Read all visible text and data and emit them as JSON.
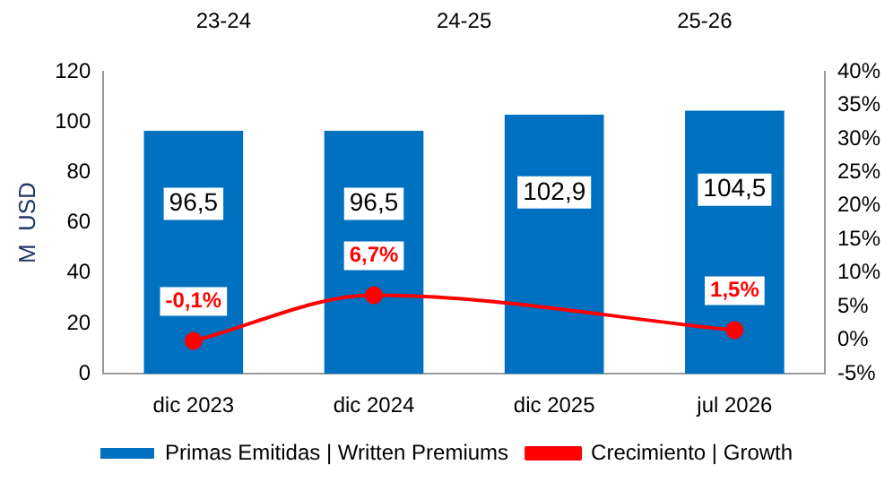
{
  "chart_data": {
    "type": "bar",
    "ylabel": "M  USD",
    "categories": [
      "dic 2023",
      "dic 2024",
      "dic 2025",
      "jul 2026"
    ],
    "series": [
      {
        "name": "Primas Emitidas | Written Premiums",
        "color": "#0070c0",
        "values": [
          96.5,
          96.5,
          102.9,
          104.5
        ],
        "value_labels": [
          "96,5",
          "96,5",
          "102,9",
          "104,5"
        ]
      },
      {
        "name": "Crecimiento | Growth",
        "type": "line",
        "axis": "y2",
        "color": "#ff0000",
        "marker": "circle",
        "values": [
          -0.1,
          6.7,
          null,
          1.5
        ],
        "value_labels": [
          "-0,1%",
          "6,7%",
          null,
          "1,5%"
        ]
      }
    ],
    "ylim": [
      0,
      120
    ],
    "yticks": [
      0,
      20,
      40,
      60,
      80,
      100,
      120
    ],
    "y2lim": [
      -5,
      40
    ],
    "y2ticks": [
      {
        "value": -5,
        "label": "-5%"
      },
      {
        "value": 0,
        "label": "0%"
      },
      {
        "value": 5,
        "label": "5%"
      },
      {
        "value": 10,
        "label": "10%"
      },
      {
        "value": 15,
        "label": "15%"
      },
      {
        "value": 20,
        "label": "20%"
      },
      {
        "value": 25,
        "label": "25%"
      },
      {
        "value": 30,
        "label": "30%"
      },
      {
        "value": 35,
        "label": "35%"
      },
      {
        "value": 40,
        "label": "40%"
      }
    ],
    "annotations": [
      "23-24",
      "24-25",
      "25-26"
    ],
    "grid": false,
    "legend": "bottom"
  }
}
